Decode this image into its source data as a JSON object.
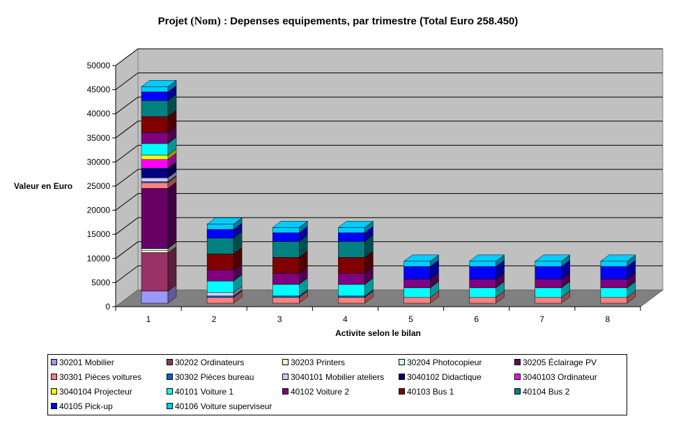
{
  "chart_data": {
    "type": "bar",
    "stacked": true,
    "three_d": true,
    "title": "Projet",
    "title_name": "(Nom)",
    "title_rest": ": Depenses equipements, par trimestre (Total Euro 258.450)",
    "xlabel": "Activite selon le bilan",
    "ylabel": "Valeur en Euro",
    "ylim": [
      0,
      50000
    ],
    "yticks": [
      "0",
      "5000",
      "10000",
      "15000",
      "20000",
      "25000",
      "30000",
      "35000",
      "40000",
      "45000",
      "50000"
    ],
    "categories": [
      "1",
      "2",
      "3",
      "4",
      "5",
      "6",
      "7",
      "8"
    ],
    "grid": true,
    "legend_position": "bottom",
    "series": [
      {
        "name": "30201 Mobilier",
        "color": "#9999FF",
        "values": [
          2500,
          0,
          0,
          0,
          0,
          0,
          0,
          0
        ]
      },
      {
        "name": "30202 Ordinateurs",
        "color": "#993366",
        "values": [
          8000,
          0,
          0,
          0,
          0,
          0,
          0,
          0
        ]
      },
      {
        "name": "30203 Printers",
        "color": "#FFFFCC",
        "values": [
          400,
          0,
          0,
          0,
          0,
          0,
          0,
          0
        ]
      },
      {
        "name": "30204 Photocopieur",
        "color": "#CCFFFF",
        "values": [
          400,
          0,
          0,
          0,
          0,
          0,
          0,
          0
        ]
      },
      {
        "name": "30205 Éclairage PV",
        "color": "#660066",
        "values": [
          12500,
          0,
          0,
          0,
          0,
          0,
          0,
          0
        ]
      },
      {
        "name": "30301 Pièces voitures",
        "color": "#FF8080",
        "values": [
          1200,
          1200,
          1200,
          1200,
          1200,
          1200,
          1200,
          1200
        ]
      },
      {
        "name": "30302 Pièces bureau",
        "color": "#0066CC",
        "values": [
          200,
          300,
          300,
          300,
          0,
          0,
          0,
          0
        ]
      },
      {
        "name": "3040101 Mobilier ateliers",
        "color": "#CCCCFF",
        "values": [
          800,
          700,
          0,
          0,
          0,
          0,
          0,
          0
        ]
      },
      {
        "name": "3040102 Didactique",
        "color": "#000080",
        "values": [
          2000,
          0,
          0,
          0,
          0,
          0,
          0,
          0
        ]
      },
      {
        "name": "3040103 Ordinateur",
        "color": "#FF00FF",
        "values": [
          1800,
          0,
          0,
          0,
          0,
          0,
          0,
          0
        ]
      },
      {
        "name": "3040104 Projecteur",
        "color": "#FFFF00",
        "values": [
          900,
          0,
          0,
          0,
          0,
          0,
          0,
          0
        ]
      },
      {
        "name": "40101 Voiture 1",
        "color": "#00FFFF",
        "values": [
          2400,
          2400,
          2400,
          2400,
          2000,
          2000,
          2000,
          2000
        ]
      },
      {
        "name": "40102 Voiture 2",
        "color": "#800080",
        "values": [
          2300,
          2300,
          2300,
          2300,
          1800,
          1800,
          1800,
          1800
        ]
      },
      {
        "name": "40103 Bus 1",
        "color": "#800000",
        "values": [
          3300,
          3300,
          3300,
          3300,
          0,
          0,
          0,
          0
        ]
      },
      {
        "name": "40104 Bus 2",
        "color": "#008080",
        "values": [
          3300,
          3300,
          3300,
          3300,
          0,
          0,
          0,
          0
        ]
      },
      {
        "name": "40105 Pick-up",
        "color": "#0000FF",
        "values": [
          1800,
          1800,
          1800,
          1800,
          2600,
          2600,
          2600,
          2600
        ]
      },
      {
        "name": "40106 Voiture superviseur",
        "color": "#00CCFF",
        "values": [
          1100,
          1100,
          1100,
          1100,
          1100,
          1100,
          1100,
          1100
        ]
      }
    ]
  }
}
